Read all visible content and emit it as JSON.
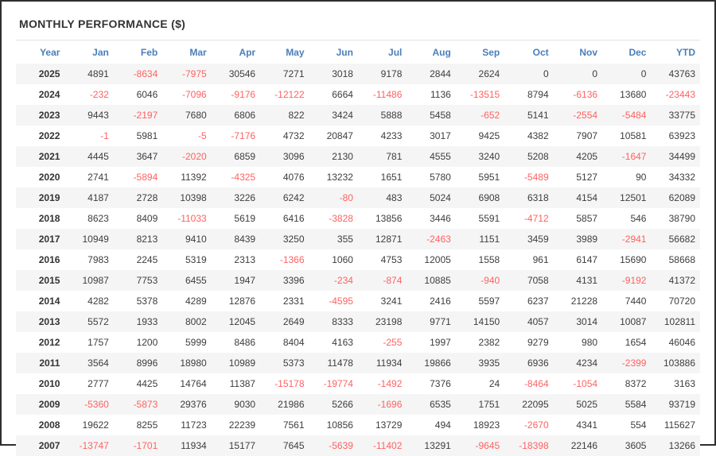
{
  "colors": {
    "frame_border": "#2e2e2e",
    "title_text": "#333333",
    "divider": "#e2e2e2",
    "header_text": "#4a7ebc",
    "value_text": "#3d3d3d",
    "year_text": "#333333",
    "negative": "#ff6262",
    "row_stripe": "#f5f5f5"
  },
  "chart_data": {
    "type": "table",
    "title": "MONTHLY PERFORMANCE ($)",
    "columns": [
      "Year",
      "Jan",
      "Feb",
      "Mar",
      "Apr",
      "May",
      "Jun",
      "Jul",
      "Aug",
      "Sep",
      "Oct",
      "Nov",
      "Dec",
      "YTD"
    ],
    "rows": [
      {
        "year": "2025",
        "values": [
          4891,
          -8634,
          -7975,
          30546,
          7271,
          3018,
          9178,
          2844,
          2624,
          0,
          0,
          0,
          43763
        ]
      },
      {
        "year": "2024",
        "values": [
          -232,
          6046,
          -7096,
          -9176,
          -12122,
          6664,
          -11486,
          1136,
          -13515,
          8794,
          -6136,
          13680,
          -23443
        ]
      },
      {
        "year": "2023",
        "values": [
          9443,
          -2197,
          7680,
          6806,
          822,
          3424,
          5888,
          5458,
          -652,
          5141,
          -2554,
          -5484,
          33775
        ]
      },
      {
        "year": "2022",
        "values": [
          -1,
          5981,
          -5,
          -7176,
          4732,
          20847,
          4233,
          3017,
          9425,
          4382,
          7907,
          10581,
          63923
        ]
      },
      {
        "year": "2021",
        "values": [
          4445,
          3647,
          -2020,
          6859,
          3096,
          2130,
          781,
          4555,
          3240,
          5208,
          4205,
          -1647,
          34499
        ]
      },
      {
        "year": "2020",
        "values": [
          2741,
          -5894,
          11392,
          -4325,
          4076,
          13232,
          1651,
          5780,
          5951,
          -5489,
          5127,
          90,
          34332
        ]
      },
      {
        "year": "2019",
        "values": [
          4187,
          2728,
          10398,
          3226,
          6242,
          -80,
          483,
          5024,
          6908,
          6318,
          4154,
          12501,
          62089
        ]
      },
      {
        "year": "2018",
        "values": [
          8623,
          8409,
          -11033,
          5619,
          6416,
          -3828,
          13856,
          3446,
          5591,
          -4712,
          5857,
          546,
          38790
        ]
      },
      {
        "year": "2017",
        "values": [
          10949,
          8213,
          9410,
          8439,
          3250,
          355,
          12871,
          -2463,
          1151,
          3459,
          3989,
          -2941,
          56682
        ]
      },
      {
        "year": "2016",
        "values": [
          7983,
          2245,
          5319,
          2313,
          -1366,
          1060,
          4753,
          12005,
          1558,
          961,
          6147,
          15690,
          58668
        ]
      },
      {
        "year": "2015",
        "values": [
          10987,
          7753,
          6455,
          1947,
          3396,
          -234,
          -874,
          10885,
          -940,
          7058,
          4131,
          -9192,
          41372
        ]
      },
      {
        "year": "2014",
        "values": [
          4282,
          5378,
          4289,
          12876,
          2331,
          -4595,
          3241,
          2416,
          5597,
          6237,
          21228,
          7440,
          70720
        ]
      },
      {
        "year": "2013",
        "values": [
          5572,
          1933,
          8002,
          12045,
          2649,
          8333,
          23198,
          9771,
          14150,
          4057,
          3014,
          10087,
          102811
        ]
      },
      {
        "year": "2012",
        "values": [
          1757,
          1200,
          5999,
          8486,
          8404,
          4163,
          -255,
          1997,
          2382,
          9279,
          980,
          1654,
          46046
        ]
      },
      {
        "year": "2011",
        "values": [
          3564,
          8996,
          18980,
          10989,
          5373,
          11478,
          11934,
          19866,
          3935,
          6936,
          4234,
          -2399,
          103886
        ]
      },
      {
        "year": "2010",
        "values": [
          2777,
          4425,
          14764,
          11387,
          -15178,
          -19774,
          -1492,
          7376,
          24,
          -8464,
          -1054,
          8372,
          3163
        ]
      },
      {
        "year": "2009",
        "values": [
          -5360,
          -5873,
          29376,
          9030,
          21986,
          5266,
          -1696,
          6535,
          1751,
          22095,
          5025,
          5584,
          93719
        ]
      },
      {
        "year": "2008",
        "values": [
          19622,
          8255,
          11723,
          22239,
          7561,
          10856,
          13729,
          494,
          18923,
          -2670,
          4341,
          554,
          115627
        ]
      },
      {
        "year": "2007",
        "values": [
          -13747,
          -1701,
          11934,
          15177,
          7645,
          -5639,
          -11402,
          13291,
          -9645,
          -18398,
          22146,
          3605,
          13266
        ]
      }
    ]
  }
}
